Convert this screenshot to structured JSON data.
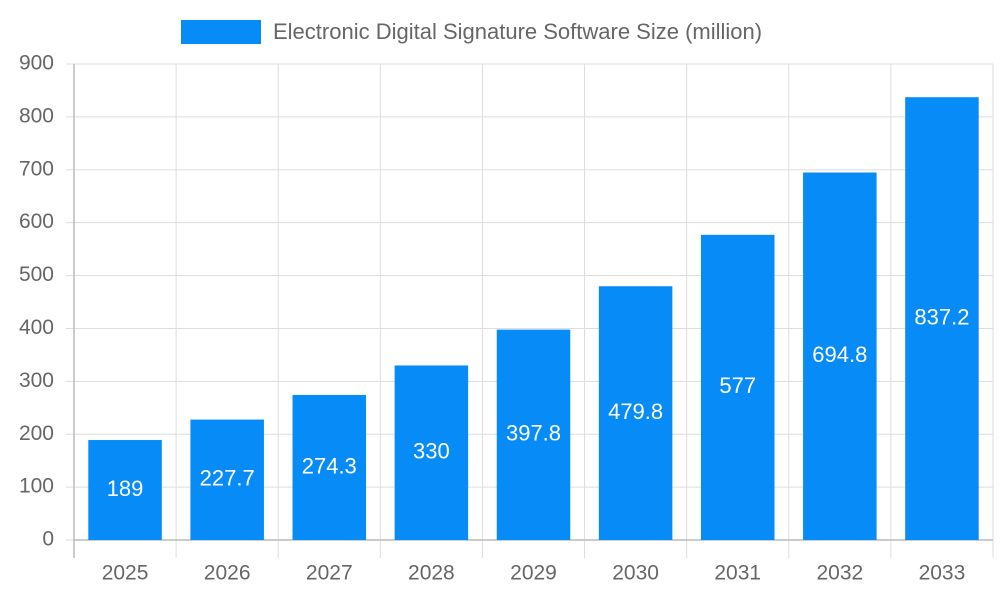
{
  "chart_data": {
    "type": "bar",
    "categories": [
      "2025",
      "2026",
      "2027",
      "2028",
      "2029",
      "2030",
      "2031",
      "2032",
      "2033"
    ],
    "series": [
      {
        "name": "Electronic Digital Signature Software Size (million)",
        "color": "#078cf7",
        "values": [
          189,
          227.7,
          274.3,
          330,
          397.8,
          479.8,
          577,
          694.8,
          837.2
        ]
      }
    ],
    "ylim": [
      0,
      900
    ],
    "yticks": [
      0,
      100,
      200,
      300,
      400,
      500,
      600,
      700,
      800,
      900
    ],
    "grid": true,
    "legend": "top"
  }
}
